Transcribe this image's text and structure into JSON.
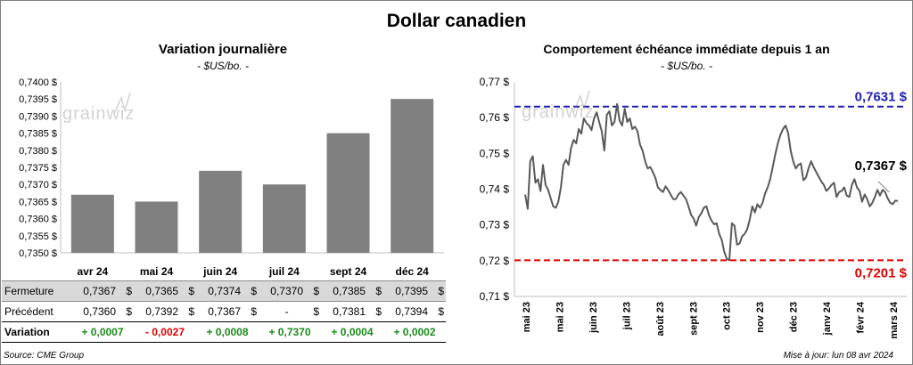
{
  "title": "Dollar canadien",
  "left_chart": {
    "title": "Variation  journalière",
    "subtitle": "- $US/bo. -"
  },
  "right_chart": {
    "title": "Comportement échéance immédiate depuis 1 an",
    "subtitle": "- $US/bo. -"
  },
  "watermark": "grainwiz",
  "table": {
    "rows": [
      {
        "label": "Fermeture",
        "values": [
          "0,7367",
          "0,7365",
          "0,7374",
          "0,7370",
          "0,7385",
          "0,7395"
        ],
        "unit": "$"
      },
      {
        "label": "Précédent",
        "values": [
          "0,7360",
          "0,7392",
          "0,7367",
          "-",
          "0,7381",
          "0,7394"
        ],
        "unit": "$"
      },
      {
        "label": "Variation",
        "values": [
          "+ 0,0007",
          "- 0,0027",
          "+ 0,0008",
          "+ 0,7370",
          "+ 0,0004",
          "+ 0,0002"
        ]
      }
    ]
  },
  "footer": {
    "source": "Source: CME Group",
    "updated": "Mise à jour: lun 08 avr 2024"
  },
  "colors": {
    "bar": "#808080",
    "line": "#595959",
    "high_line": "#1f1fb4",
    "low_line": "#e00000",
    "positive": "#1a8a1a",
    "negative": "#e00000",
    "table_header_bg": "#d9d9d9"
  },
  "chart_data": [
    {
      "type": "bar",
      "categories": [
        "avr 24",
        "mai 24",
        "juin 24",
        "juil 24",
        "sept 24",
        "déc 24"
      ],
      "values": [
        0.7367,
        0.7365,
        0.7374,
        0.737,
        0.7385,
        0.7395
      ],
      "ylim": [
        0.735,
        0.74
      ],
      "yticks": [
        "0,7350 $",
        "0,7355 $",
        "0,7360 $",
        "0,7365 $",
        "0,7370 $",
        "0,7375 $",
        "0,7380 $",
        "0,7385 $",
        "0,7390 $",
        "0,7395 $",
        "0,7400 $"
      ],
      "grid": false
    },
    {
      "type": "line",
      "x_ticks": [
        "mai 23",
        "mai 23",
        "juin 23",
        "juil 23",
        "août 23",
        "sept 23",
        "oct 23",
        "nov 23",
        "déc 23",
        "janv 24",
        "févr 24",
        "mars 24"
      ],
      "ylim": [
        0.71,
        0.77
      ],
      "yticks": [
        "0,71 $",
        "0,72 $",
        "0,73 $",
        "0,74 $",
        "0,75 $",
        "0,76 $",
        "0,77 $"
      ],
      "values": [
        0.7385,
        0.7345,
        0.7478,
        0.7492,
        0.7418,
        0.7428,
        0.7395,
        0.7468,
        0.7412,
        0.7398,
        0.7375,
        0.7352,
        0.7348,
        0.7365,
        0.7405,
        0.7468,
        0.7482,
        0.7468,
        0.7515,
        0.7538,
        0.7528,
        0.7568,
        0.7555,
        0.7598,
        0.7585,
        0.7578,
        0.7565,
        0.7598,
        0.7615,
        0.7588,
        0.7562,
        0.7508,
        0.7608,
        0.7618,
        0.7578,
        0.7588,
        0.7638,
        0.7592,
        0.7578,
        0.7625,
        0.7588,
        0.7598,
        0.7568,
        0.7575,
        0.7562,
        0.7525,
        0.7508,
        0.7478,
        0.7458,
        0.7462,
        0.7448,
        0.7432,
        0.7405,
        0.7398,
        0.7392,
        0.7408,
        0.7398,
        0.7385,
        0.7372,
        0.7372,
        0.7385,
        0.7392,
        0.7382,
        0.7372,
        0.7352,
        0.7328,
        0.7318,
        0.7298,
        0.7322,
        0.7332,
        0.7348,
        0.7352,
        0.7328,
        0.7312,
        0.7302,
        0.7305,
        0.7275,
        0.7258,
        0.7225,
        0.7205,
        0.7201,
        0.7305,
        0.7298,
        0.7245,
        0.7248,
        0.7268,
        0.7275,
        0.7288,
        0.7315,
        0.7352,
        0.7335,
        0.7358,
        0.7348,
        0.7362,
        0.7388,
        0.7405,
        0.7428,
        0.7462,
        0.7498,
        0.7528,
        0.7552,
        0.7568,
        0.7578,
        0.7558,
        0.7508,
        0.7478,
        0.7458,
        0.7468,
        0.7472,
        0.7425,
        0.7432,
        0.7458,
        0.7478,
        0.7462,
        0.7448,
        0.7435,
        0.7422,
        0.7412,
        0.7395,
        0.7402,
        0.7412,
        0.7418,
        0.7378,
        0.7392,
        0.7395,
        0.7405,
        0.7382,
        0.7378,
        0.7412,
        0.7428,
        0.7405,
        0.7395,
        0.7365,
        0.7385,
        0.7372,
        0.7352,
        0.7362,
        0.7378,
        0.7398,
        0.7382,
        0.7398,
        0.7392,
        0.7375,
        0.7362,
        0.7358,
        0.7368,
        0.7367
      ],
      "reference_lines": [
        {
          "label": "0,7631 $",
          "value": 0.7631
        },
        {
          "label": "0,7201 $",
          "value": 0.7201
        }
      ],
      "last_label": "0,7367 $",
      "grid": false
    }
  ]
}
